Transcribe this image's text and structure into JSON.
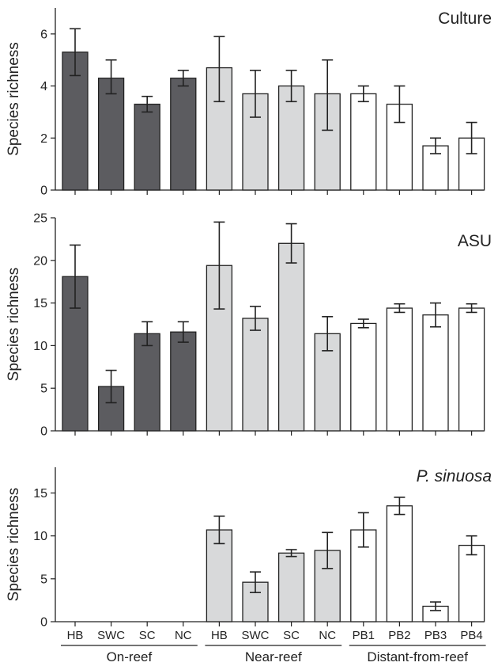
{
  "styles": {
    "on_reef_fill": "#5c5c60",
    "near_reef_fill": "#d8d9da",
    "distant_fill": "#ffffff",
    "stroke": "#222222"
  },
  "chart_data": {
    "type": "bar",
    "categories": [
      "HB",
      "SWC",
      "SC",
      "NC",
      "HB",
      "SWC",
      "SC",
      "NC",
      "PB1",
      "PB2",
      "PB3",
      "PB4"
    ],
    "groups": [
      {
        "label": "On-reef",
        "indices": [
          0,
          1,
          2,
          3
        ],
        "fill_key": "on_reef_fill"
      },
      {
        "label": "Near-reef",
        "indices": [
          4,
          5,
          6,
          7
        ],
        "fill_key": "near_reef_fill"
      },
      {
        "label": "Distant-from-reef",
        "indices": [
          8,
          9,
          10,
          11
        ],
        "fill_key": "distant_fill"
      }
    ],
    "panels": [
      {
        "id": "culture",
        "title": "Culture",
        "title_italic": false,
        "ylabel": "Species richness",
        "ylim": [
          0,
          7
        ],
        "yticks": [
          0,
          2,
          4,
          6
        ],
        "values": [
          5.3,
          4.3,
          3.3,
          4.3,
          4.7,
          3.7,
          4.0,
          3.7,
          3.7,
          3.3,
          1.7,
          2.0
        ],
        "err_upper": [
          6.2,
          5.0,
          3.6,
          4.6,
          5.9,
          4.6,
          4.6,
          5.0,
          4.0,
          4.0,
          2.0,
          2.6
        ],
        "err_lower": [
          4.4,
          3.7,
          3.0,
          4.0,
          3.4,
          2.8,
          3.4,
          2.3,
          3.4,
          2.6,
          1.4,
          1.4
        ]
      },
      {
        "id": "asu",
        "title": "ASU",
        "title_italic": false,
        "ylabel": "Species richness",
        "ylim": [
          0,
          25
        ],
        "yticks": [
          0,
          5,
          10,
          15,
          20,
          25
        ],
        "values": [
          18.1,
          5.2,
          11.4,
          11.6,
          19.4,
          13.2,
          22.0,
          11.4,
          12.6,
          14.4,
          13.6,
          14.4
        ],
        "err_upper": [
          21.8,
          7.1,
          12.8,
          12.8,
          24.5,
          14.6,
          24.3,
          13.4,
          13.1,
          14.9,
          15.0,
          14.9
        ],
        "err_lower": [
          14.4,
          3.3,
          10.0,
          10.4,
          14.3,
          11.8,
          19.7,
          9.4,
          12.1,
          13.9,
          12.2,
          13.9
        ]
      },
      {
        "id": "psinuosa",
        "title": "P. sinuosa",
        "title_italic": true,
        "ylabel": "Species richness",
        "ylim": [
          0,
          18
        ],
        "yticks": [
          0,
          5,
          10,
          15
        ],
        "values": [
          0,
          0,
          0,
          0,
          10.7,
          4.6,
          8.0,
          8.3,
          10.7,
          13.5,
          1.8,
          8.9
        ],
        "err_upper": [
          null,
          null,
          null,
          null,
          12.3,
          5.8,
          8.4,
          10.4,
          12.7,
          14.5,
          2.3,
          10.0
        ],
        "err_lower": [
          null,
          null,
          null,
          null,
          9.1,
          3.4,
          7.6,
          6.2,
          8.7,
          12.5,
          1.3,
          7.8
        ]
      }
    ]
  }
}
